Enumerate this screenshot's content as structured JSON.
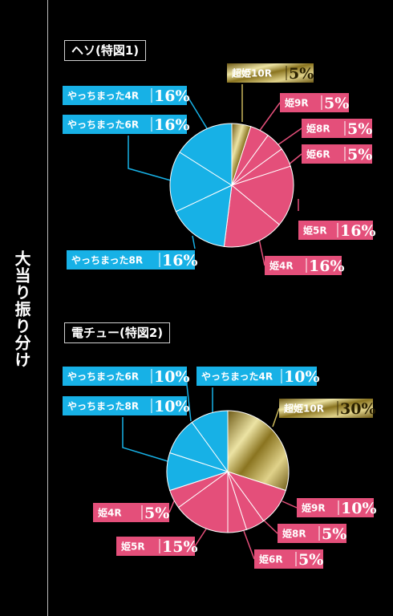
{
  "side_label": "大当り振り分け",
  "colors": {
    "blue": "#17b1e6",
    "pink": "#e44f7a",
    "gold_light": "#ece3a4",
    "gold_dark": "#6e5a16",
    "label_fg": "#ffffff",
    "pct_on_blue": "#ffffff",
    "pct_on_pink": "#ffffff",
    "pct_on_gold": "#2a2000"
  },
  "chart_data": [
    {
      "type": "pie",
      "title": "ヘソ(特図1)",
      "slices": [
        {
          "label": "超姫10R",
          "value": 5,
          "value_label": "5%",
          "color": "gold"
        },
        {
          "label": "姫9R",
          "value": 5,
          "value_label": "5%",
          "color": "pink"
        },
        {
          "label": "姫8R",
          "value": 5,
          "value_label": "5%",
          "color": "pink"
        },
        {
          "label": "姫6R",
          "value": 5,
          "value_label": "5%",
          "color": "pink"
        },
        {
          "label": "姫5R",
          "value": 16,
          "value_label": "16%",
          "color": "pink"
        },
        {
          "label": "姫4R",
          "value": 16,
          "value_label": "16%",
          "color": "pink"
        },
        {
          "label": "やっちまった8R",
          "value": 16,
          "value_label": "16%",
          "color": "blue"
        },
        {
          "label": "やっちまった6R",
          "value": 16,
          "value_label": "16%",
          "color": "blue"
        },
        {
          "label": "やっちまった4R",
          "value": 16,
          "value_label": "16%",
          "color": "blue"
        }
      ]
    },
    {
      "type": "pie",
      "title": "電チュー(特図2)",
      "slices": [
        {
          "label": "超姫10R",
          "value": 30,
          "value_label": "30%",
          "color": "gold"
        },
        {
          "label": "姫9R",
          "value": 10,
          "value_label": "10%",
          "color": "pink"
        },
        {
          "label": "姫8R",
          "value": 5,
          "value_label": "5%",
          "color": "pink"
        },
        {
          "label": "姫6R",
          "value": 5,
          "value_label": "5%",
          "color": "pink"
        },
        {
          "label": "姫5R",
          "value": 15,
          "value_label": "15%",
          "color": "pink"
        },
        {
          "label": "姫4R",
          "value": 5,
          "value_label": "5%",
          "color": "pink"
        },
        {
          "label": "やっちまった8R",
          "value": 10,
          "value_label": "10%",
          "color": "blue"
        },
        {
          "label": "やっちまった6R",
          "value": 10,
          "value_label": "10%",
          "color": "blue"
        },
        {
          "label": "やっちまった4R",
          "value": 10,
          "value_label": "10%",
          "color": "blue"
        }
      ]
    }
  ]
}
